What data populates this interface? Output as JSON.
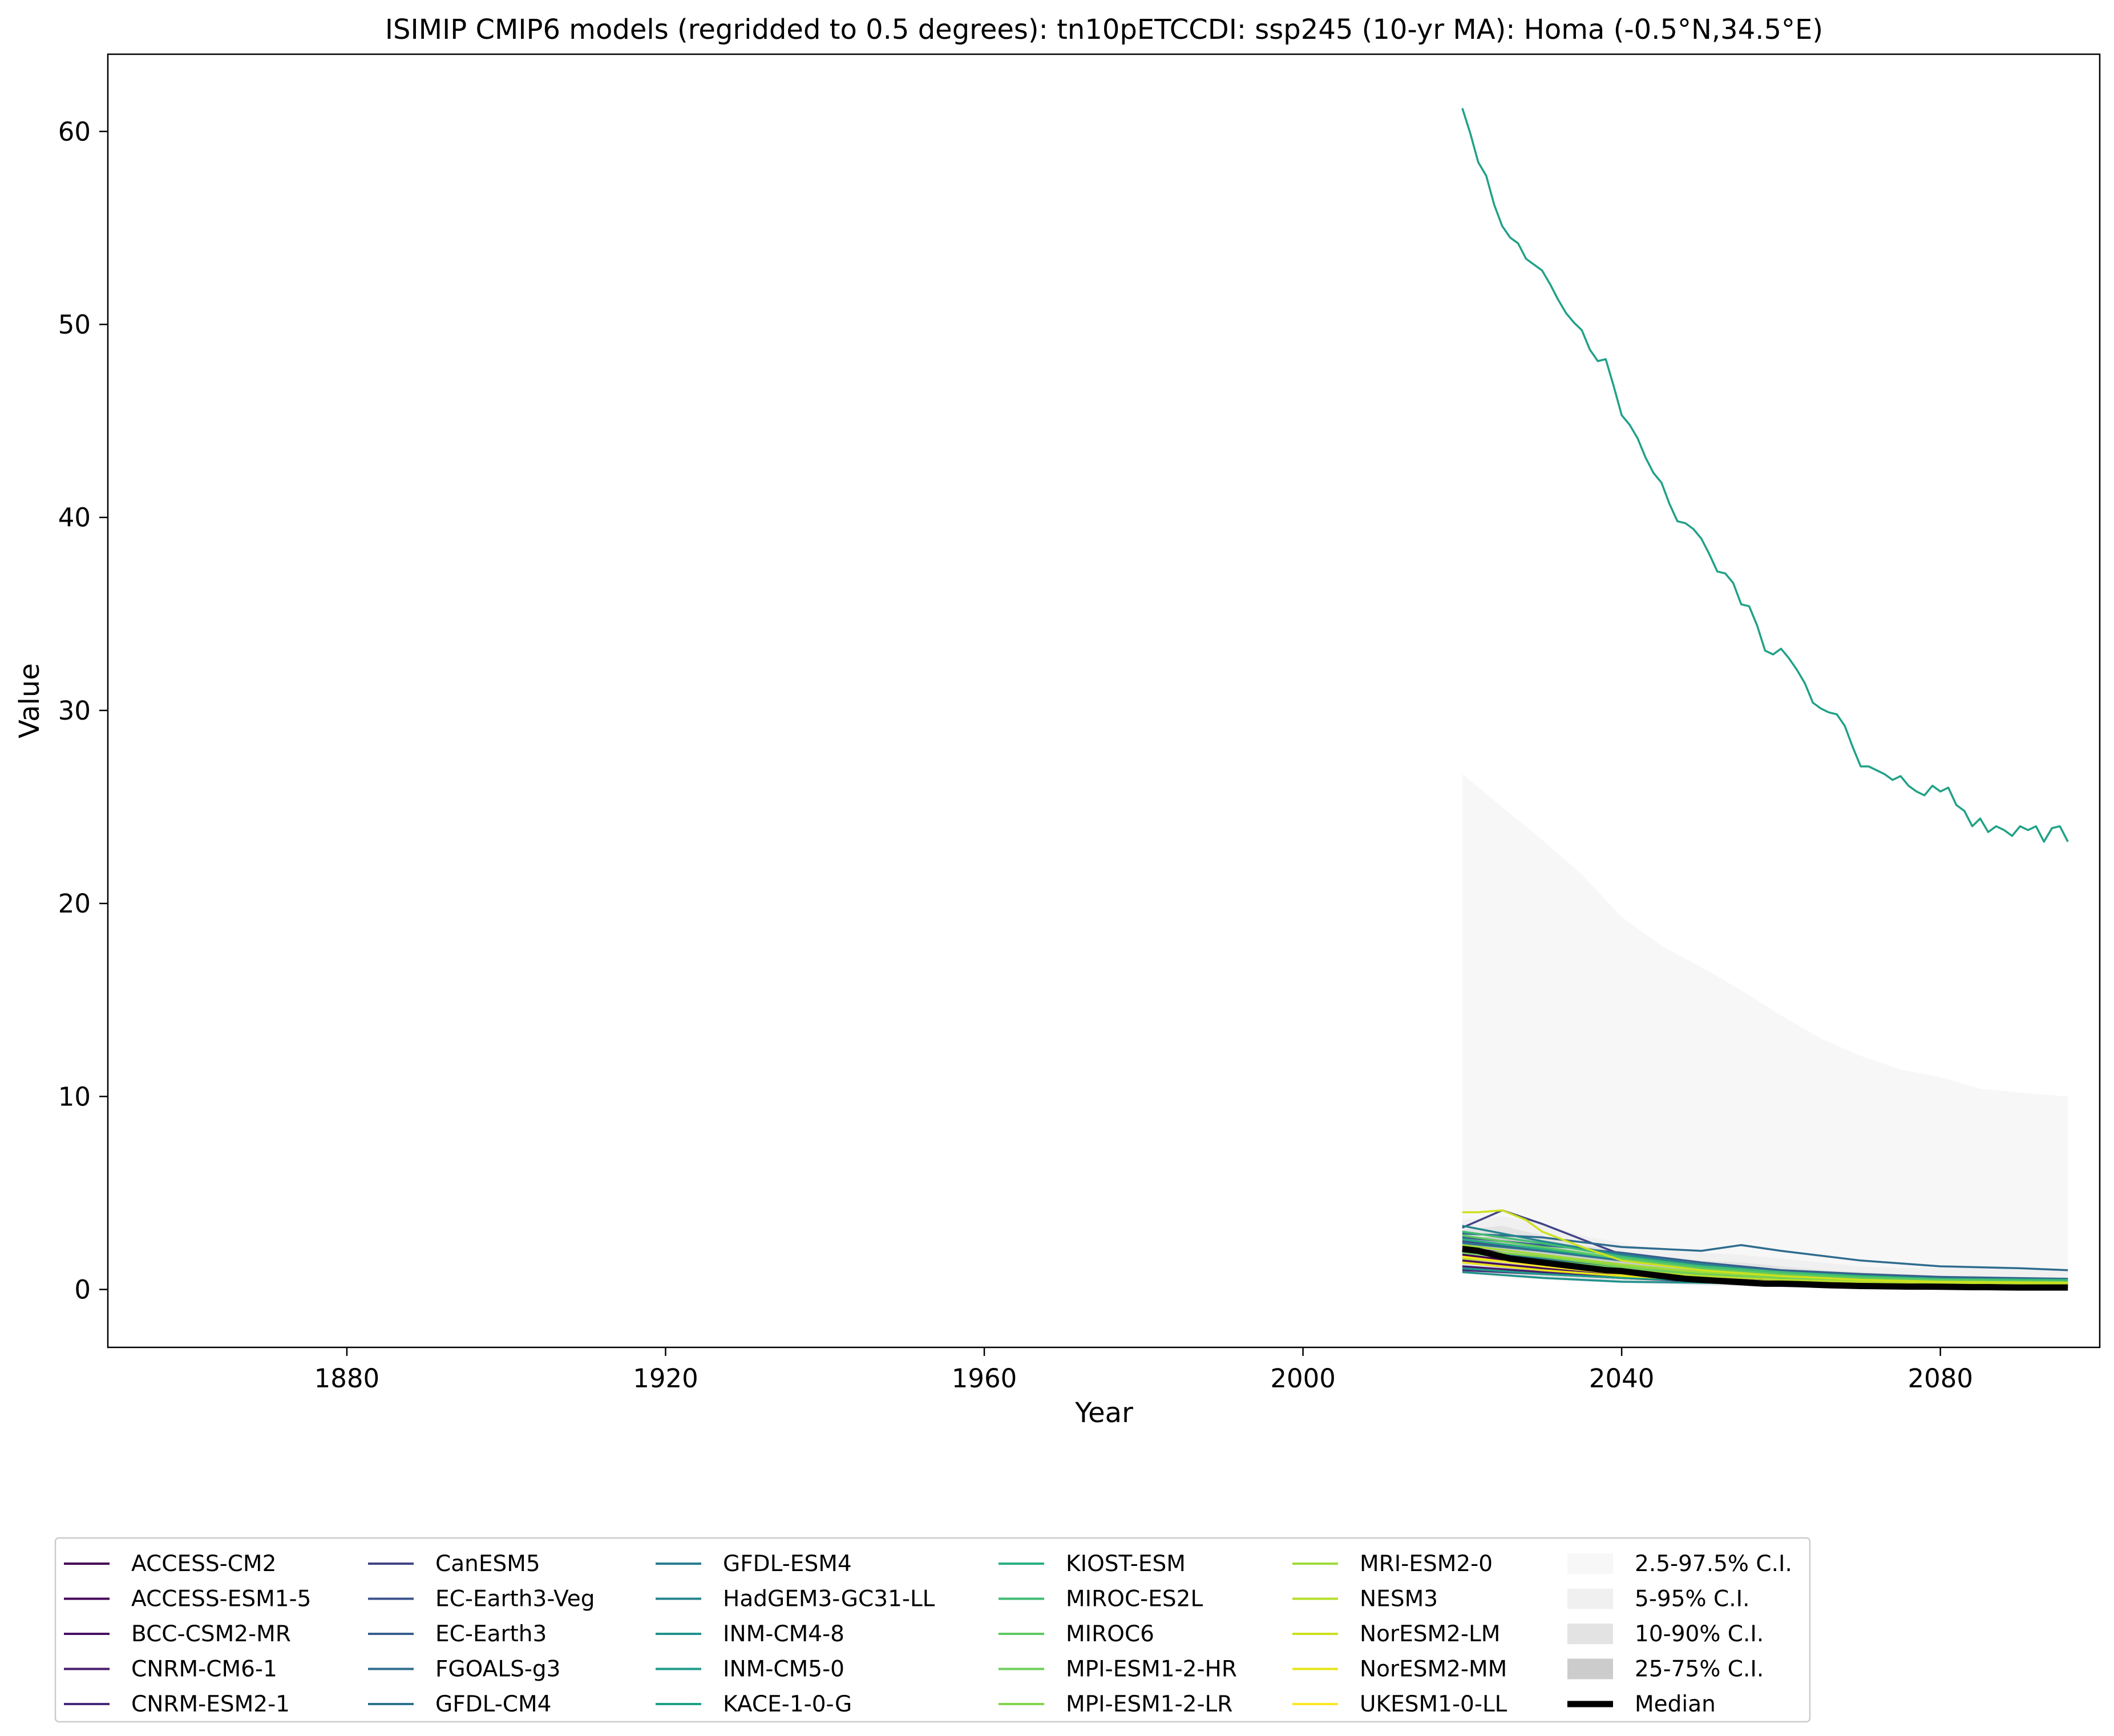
{
  "chart_data": {
    "type": "line",
    "title": "ISIMIP CMIP6 models (regridded to 0.5 degrees): tn10pETCCDI: ssp245 (10-yr MA): Homa (-0.5°N,34.5°E)",
    "xlabel": "Year",
    "ylabel": "Value",
    "xlim": [
      1850,
      2100
    ],
    "ylim": [
      -3,
      64
    ],
    "xticks": [
      1880,
      1920,
      1960,
      2000,
      2040,
      2080
    ],
    "yticks": [
      0,
      10,
      20,
      30,
      40,
      50,
      60
    ],
    "grid": false,
    "legend_position": "bottom",
    "legend_columns": 6,
    "bands": [
      {
        "name": "2.5-97.5% C.I.",
        "color": "#f7f7f7",
        "x": [
          2020,
          2025,
          2030,
          2035,
          2040,
          2045,
          2050,
          2055,
          2060,
          2065,
          2070,
          2075,
          2080,
          2085,
          2090,
          2096
        ],
        "lower": [
          0.8,
          0.6,
          0.5,
          0.4,
          0.3,
          0.25,
          0.2,
          0.15,
          0.1,
          0.1,
          0.08,
          0.05,
          0.05,
          0.05,
          0.05,
          0.05
        ],
        "upper": [
          26.7,
          25.0,
          23.3,
          21.5,
          19.3,
          17.8,
          16.7,
          15.5,
          14.2,
          13.0,
          12.1,
          11.4,
          11.0,
          10.4,
          10.2,
          10.0
        ]
      },
      {
        "name": "5-95% C.I.",
        "color": "#f0f0f0",
        "x": [
          2020,
          2025,
          2030,
          2035,
          2040,
          2045,
          2050,
          2055,
          2060,
          2065,
          2070,
          2075,
          2080,
          2085,
          2090,
          2096
        ],
        "lower": [
          0.9,
          0.7,
          0.55,
          0.45,
          0.35,
          0.3,
          0.22,
          0.18,
          0.12,
          0.1,
          0.09,
          0.07,
          0.06,
          0.06,
          0.05,
          0.05
        ],
        "upper": [
          3.6,
          3.8,
          3.4,
          2.8,
          2.4,
          2.0,
          1.9,
          1.8,
          1.6,
          1.4,
          1.2,
          1.1,
          1.1,
          1.1,
          1.0,
          1.0
        ]
      },
      {
        "name": "10-90% C.I.",
        "color": "#e3e3e3",
        "x": [
          2020,
          2025,
          2030,
          2035,
          2040,
          2045,
          2050,
          2055,
          2060,
          2065,
          2070,
          2075,
          2080,
          2085,
          2090,
          2096
        ],
        "lower": [
          1.0,
          0.8,
          0.6,
          0.5,
          0.4,
          0.32,
          0.25,
          0.2,
          0.15,
          0.12,
          0.1,
          0.08,
          0.07,
          0.07,
          0.06,
          0.06
        ],
        "upper": [
          3.1,
          3.3,
          2.8,
          2.3,
          2.0,
          1.7,
          1.5,
          1.4,
          1.2,
          1.0,
          0.9,
          0.8,
          0.7,
          0.7,
          0.6,
          0.6
        ]
      },
      {
        "name": "25-75% C.I.",
        "color": "#cccccc",
        "x": [
          2020,
          2025,
          2030,
          2035,
          2040,
          2045,
          2050,
          2055,
          2060,
          2065,
          2070,
          2075,
          2080,
          2085,
          2090,
          2096
        ],
        "lower": [
          1.4,
          1.1,
          0.9,
          0.7,
          0.6,
          0.45,
          0.35,
          0.28,
          0.22,
          0.18,
          0.15,
          0.12,
          0.1,
          0.09,
          0.08,
          0.08
        ],
        "upper": [
          2.6,
          2.8,
          2.2,
          1.8,
          1.5,
          1.3,
          1.1,
          0.95,
          0.8,
          0.65,
          0.55,
          0.5,
          0.45,
          0.42,
          0.4,
          0.38
        ]
      }
    ],
    "series": [
      {
        "name": "ACCESS-CM2",
        "color": "#440154",
        "x": [
          2020,
          2030,
          2040,
          2050,
          2060,
          2070,
          2080,
          2096
        ],
        "values": [
          1.8,
          1.3,
          0.9,
          0.6,
          0.4,
          0.3,
          0.25,
          0.2
        ]
      },
      {
        "name": "ACCESS-ESM1-5",
        "color": "#46085c",
        "x": [
          2020,
          2030,
          2040,
          2050,
          2060,
          2070,
          2080,
          2096
        ],
        "values": [
          1.5,
          1.1,
          0.8,
          0.5,
          0.35,
          0.25,
          0.2,
          0.15
        ]
      },
      {
        "name": "BCC-CSM2-MR",
        "color": "#471063",
        "x": [
          2020,
          2030,
          2040,
          2050,
          2060,
          2070,
          2080,
          2096
        ],
        "values": [
          2.2,
          1.6,
          1.1,
          0.7,
          0.5,
          0.35,
          0.3,
          0.25
        ]
      },
      {
        "name": "CNRM-CM6-1",
        "color": "#481a6c",
        "x": [
          2020,
          2030,
          2040,
          2050,
          2060,
          2070,
          2080,
          2096
        ],
        "values": [
          1.2,
          0.9,
          0.6,
          0.4,
          0.3,
          0.2,
          0.15,
          0.1
        ]
      },
      {
        "name": "CNRM-ESM2-1",
        "color": "#472a7a",
        "x": [
          2020,
          2030,
          2040,
          2050,
          2060,
          2070,
          2080,
          2096
        ],
        "values": [
          1.0,
          0.8,
          0.6,
          0.45,
          0.3,
          0.2,
          0.15,
          0.1
        ]
      },
      {
        "name": "CanESM5",
        "color": "#414487",
        "x": [
          2020,
          2025,
          2030,
          2035,
          2040,
          2050,
          2060,
          2070,
          2080,
          2096
        ],
        "values": [
          3.2,
          4.1,
          3.4,
          2.6,
          1.8,
          1.2,
          0.7,
          0.5,
          0.35,
          0.3
        ]
      },
      {
        "name": "EC-Earth3-Veg",
        "color": "#3b528b",
        "x": [
          2020,
          2030,
          2040,
          2050,
          2060,
          2070,
          2080,
          2096
        ],
        "values": [
          2.5,
          2.0,
          1.6,
          1.2,
          0.9,
          0.7,
          0.6,
          0.5
        ]
      },
      {
        "name": "EC-Earth3",
        "color": "#355f8d",
        "x": [
          2020,
          2030,
          2040,
          2050,
          2060,
          2070,
          2080,
          2096
        ],
        "values": [
          2.7,
          2.3,
          1.9,
          1.4,
          1.0,
          0.8,
          0.65,
          0.55
        ]
      },
      {
        "name": "FGOALS-g3",
        "color": "#2f6c8e",
        "x": [
          2020,
          2030,
          2040,
          2050,
          2055,
          2060,
          2070,
          2080,
          2090,
          2096
        ],
        "values": [
          2.9,
          2.7,
          2.2,
          2.0,
          2.3,
          2.0,
          1.5,
          1.2,
          1.1,
          1.0
        ]
      },
      {
        "name": "GFDL-CM4",
        "color": "#2c738e",
        "x": [
          2020,
          2030,
          2040,
          2050,
          2060,
          2070,
          2080,
          2096
        ],
        "values": [
          2.4,
          2.0,
          1.5,
          1.0,
          0.7,
          0.5,
          0.4,
          0.35
        ]
      },
      {
        "name": "GFDL-ESM4",
        "color": "#287d8e",
        "x": [
          2020,
          2030,
          2040,
          2050,
          2060,
          2070,
          2080,
          2096
        ],
        "values": [
          2.0,
          1.6,
          1.2,
          0.9,
          0.6,
          0.45,
          0.35,
          0.3
        ]
      },
      {
        "name": "HadGEM3-GC31-LL",
        "color": "#25858e",
        "x": [
          2020,
          2030,
          2040,
          2050,
          2060,
          2070,
          2080,
          2096
        ],
        "values": [
          3.3,
          2.5,
          1.8,
          1.3,
          0.9,
          0.7,
          0.55,
          0.45
        ]
      },
      {
        "name": "INM-CM4-8",
        "color": "#21918c",
        "x": [
          2020,
          2030,
          2040,
          2050,
          2060,
          2070,
          2080,
          2096
        ],
        "values": [
          0.9,
          0.6,
          0.4,
          0.35,
          0.3,
          0.25,
          0.2,
          0.2
        ]
      },
      {
        "name": "INM-CM5-0",
        "color": "#1f9a8a",
        "x": [
          2020,
          2030,
          2040,
          2050,
          2060,
          2070,
          2080,
          2096
        ],
        "values": [
          1.1,
          0.8,
          0.6,
          0.45,
          0.35,
          0.3,
          0.25,
          0.2
        ]
      },
      {
        "name": "KACE-1-0-G",
        "color": "#1fa187",
        "x": [
          2020,
          2021,
          2022,
          2023,
          2024,
          2025,
          2026,
          2027,
          2028,
          2029,
          2030,
          2031,
          2032,
          2033,
          2034,
          2035,
          2036,
          2037,
          2038,
          2039,
          2040,
          2041,
          2042,
          2043,
          2044,
          2045,
          2046,
          2047,
          2048,
          2049,
          2050,
          2051,
          2052,
          2053,
          2054,
          2055,
          2056,
          2057,
          2058,
          2059,
          2060,
          2061,
          2062,
          2063,
          2064,
          2065,
          2066,
          2067,
          2068,
          2069,
          2070,
          2071,
          2072,
          2073,
          2074,
          2075,
          2076,
          2077,
          2078,
          2079,
          2080,
          2081,
          2082,
          2083,
          2084,
          2085,
          2086,
          2087,
          2088,
          2089,
          2090,
          2091,
          2092,
          2093,
          2094,
          2095,
          2096
        ],
        "values": [
          61.2,
          59.9,
          58.4,
          57.7,
          56.2,
          55.1,
          54.5,
          54.2,
          53.4,
          53.1,
          52.8,
          52.1,
          51.3,
          50.6,
          50.1,
          49.7,
          48.7,
          48.1,
          48.2,
          46.8,
          45.3,
          44.8,
          44.1,
          43.1,
          42.3,
          41.8,
          40.7,
          39.8,
          39.7,
          39.4,
          38.9,
          38.1,
          37.2,
          37.1,
          36.6,
          35.5,
          35.4,
          34.4,
          33.1,
          32.9,
          33.2,
          32.7,
          32.1,
          31.4,
          30.4,
          30.1,
          29.9,
          29.8,
          29.2,
          28.1,
          27.1,
          27.1,
          26.9,
          26.7,
          26.4,
          26.6,
          26.1,
          25.8,
          25.6,
          26.1,
          25.8,
          26.0,
          25.1,
          24.8,
          24.0,
          24.4,
          23.7,
          24.0,
          23.8,
          23.5,
          24.0,
          23.8,
          24.0,
          23.2,
          23.9,
          24.0,
          23.2
        ]
      },
      {
        "name": "KIOST-ESM",
        "color": "#28ae80",
        "x": [
          2020,
          2030,
          2040,
          2050,
          2060,
          2070,
          2080,
          2096
        ],
        "values": [
          2.6,
          2.1,
          1.6,
          1.2,
          0.9,
          0.7,
          0.55,
          0.5
        ]
      },
      {
        "name": "MIROC-ES2L",
        "color": "#3fbc73",
        "x": [
          2020,
          2030,
          2040,
          2050,
          2060,
          2070,
          2080,
          2096
        ],
        "values": [
          3.0,
          2.4,
          1.7,
          1.2,
          0.9,
          0.65,
          0.5,
          0.45
        ]
      },
      {
        "name": "MIROC6",
        "color": "#5ec962",
        "x": [
          2020,
          2030,
          2040,
          2050,
          2060,
          2070,
          2080,
          2096
        ],
        "values": [
          2.8,
          2.2,
          1.6,
          1.1,
          0.8,
          0.6,
          0.5,
          0.4
        ]
      },
      {
        "name": "MPI-ESM1-2-HR",
        "color": "#6ece58",
        "x": [
          2020,
          2030,
          2040,
          2050,
          2060,
          2070,
          2080,
          2096
        ],
        "values": [
          1.9,
          1.5,
          1.1,
          0.8,
          0.6,
          0.45,
          0.35,
          0.3
        ]
      },
      {
        "name": "MPI-ESM1-2-LR",
        "color": "#84d44b",
        "x": [
          2020,
          2030,
          2040,
          2050,
          2060,
          2070,
          2080,
          2096
        ],
        "values": [
          2.1,
          1.7,
          1.2,
          0.9,
          0.65,
          0.5,
          0.4,
          0.35
        ]
      },
      {
        "name": "MRI-ESM2-0",
        "color": "#9fda3a",
        "x": [
          2020,
          2030,
          2040,
          2050,
          2060,
          2070,
          2080,
          2096
        ],
        "values": [
          2.3,
          1.8,
          1.3,
          0.9,
          0.7,
          0.5,
          0.4,
          0.35
        ]
      },
      {
        "name": "NESM3",
        "color": "#b5de2b",
        "x": [
          2020,
          2030,
          2040,
          2050,
          2060,
          2070,
          2080,
          2096
        ],
        "values": [
          1.6,
          1.3,
          1.0,
          0.7,
          0.5,
          0.4,
          0.3,
          0.25
        ]
      },
      {
        "name": "NorESM2-LM",
        "color": "#cde11d",
        "x": [
          2020,
          2022,
          2025,
          2028,
          2030,
          2035,
          2040,
          2050,
          2060,
          2070,
          2080,
          2096
        ],
        "values": [
          4.0,
          4.0,
          4.1,
          3.6,
          3.0,
          2.2,
          1.5,
          1.0,
          0.7,
          0.5,
          0.4,
          0.35
        ]
      },
      {
        "name": "NorESM2-MM",
        "color": "#e5e419",
        "x": [
          2020,
          2030,
          2040,
          2050,
          2060,
          2070,
          2080,
          2096
        ],
        "values": [
          1.4,
          1.0,
          0.7,
          0.5,
          0.35,
          0.25,
          0.2,
          0.15
        ]
      },
      {
        "name": "UKESM1-0-LL",
        "color": "#fde725",
        "x": [
          2020,
          2030,
          2040,
          2050,
          2060,
          2070,
          2080,
          2096
        ],
        "values": [
          1.7,
          1.2,
          0.8,
          0.55,
          0.4,
          0.3,
          0.25,
          0.2
        ]
      }
    ],
    "median": {
      "name": "Median",
      "color": "#000000",
      "x": [
        2020,
        2022,
        2024,
        2026,
        2028,
        2030,
        2032,
        2034,
        2036,
        2038,
        2040,
        2042,
        2044,
        2046,
        2048,
        2050,
        2052,
        2054,
        2056,
        2058,
        2060,
        2062,
        2064,
        2066,
        2068,
        2070,
        2072,
        2074,
        2076,
        2078,
        2080,
        2082,
        2084,
        2086,
        2088,
        2090,
        2092,
        2094,
        2096
      ],
      "values": [
        2.1,
        2.0,
        1.8,
        1.6,
        1.5,
        1.4,
        1.3,
        1.2,
        1.1,
        1.0,
        0.95,
        0.85,
        0.75,
        0.65,
        0.55,
        0.5,
        0.45,
        0.4,
        0.35,
        0.3,
        0.3,
        0.28,
        0.25,
        0.22,
        0.2,
        0.18,
        0.17,
        0.16,
        0.15,
        0.15,
        0.14,
        0.13,
        0.12,
        0.12,
        0.11,
        0.1,
        0.1,
        0.1,
        0.1
      ]
    }
  }
}
